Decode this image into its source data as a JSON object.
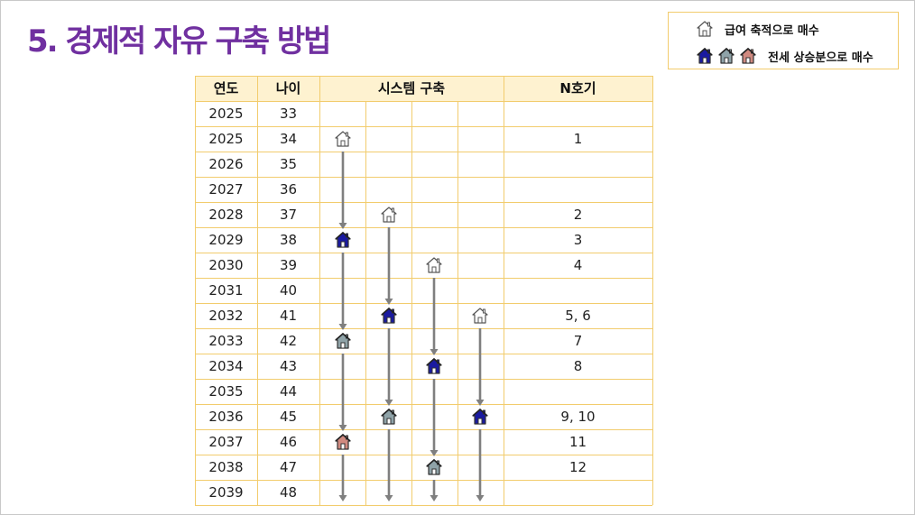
{
  "title": "5. 경제적 자유 구축 방법",
  "legend": {
    "items": [
      {
        "icons": [
          "outline"
        ],
        "label": "급여 축적으로 매수"
      },
      {
        "icons": [
          "blue",
          "gray",
          "red"
        ],
        "label": "전세 상승분으로 매수"
      }
    ]
  },
  "table": {
    "headers": [
      "연도",
      "나이",
      "시스템 구축",
      "N호기"
    ],
    "rows": [
      {
        "year": "2025",
        "age": "33",
        "n": ""
      },
      {
        "year": "2025",
        "age": "34",
        "n": "1"
      },
      {
        "year": "2026",
        "age": "35",
        "n": ""
      },
      {
        "year": "2027",
        "age": "36",
        "n": ""
      },
      {
        "year": "2028",
        "age": "37",
        "n": "2"
      },
      {
        "year": "2029",
        "age": "38",
        "n": "3"
      },
      {
        "year": "2030",
        "age": "39",
        "n": "4"
      },
      {
        "year": "2031",
        "age": "40",
        "n": ""
      },
      {
        "year": "2032",
        "age": "41",
        "n": "5, 6"
      },
      {
        "year": "2033",
        "age": "42",
        "n": "7"
      },
      {
        "year": "2034",
        "age": "43",
        "n": "8"
      },
      {
        "year": "2035",
        "age": "44",
        "n": ""
      },
      {
        "year": "2036",
        "age": "45",
        "n": "9, 10"
      },
      {
        "year": "2037",
        "age": "46",
        "n": "11"
      },
      {
        "year": "2038",
        "age": "47",
        "n": "12"
      },
      {
        "year": "2039",
        "age": "48",
        "n": ""
      }
    ]
  },
  "houses": [
    {
      "col": 0,
      "row": 1,
      "style": "outline"
    },
    {
      "col": 0,
      "row": 5,
      "style": "blue"
    },
    {
      "col": 0,
      "row": 9,
      "style": "gray"
    },
    {
      "col": 0,
      "row": 13,
      "style": "red"
    },
    {
      "col": 1,
      "row": 4,
      "style": "outline"
    },
    {
      "col": 1,
      "row": 8,
      "style": "blue"
    },
    {
      "col": 1,
      "row": 12,
      "style": "gray"
    },
    {
      "col": 2,
      "row": 6,
      "style": "outline"
    },
    {
      "col": 2,
      "row": 10,
      "style": "blue"
    },
    {
      "col": 2,
      "row": 14,
      "style": "gray"
    },
    {
      "col": 3,
      "row": 8,
      "style": "outline"
    },
    {
      "col": 3,
      "row": 12,
      "style": "blue"
    }
  ],
  "colors": {
    "header_bg": "#fef2d0",
    "grid": "#f2cc6d",
    "arrow": "#7f7f7f",
    "house_blue": "#1a1aa0",
    "house_gray": "#8fa3a8",
    "house_red": "#d08a80",
    "title": "#7030a0"
  }
}
